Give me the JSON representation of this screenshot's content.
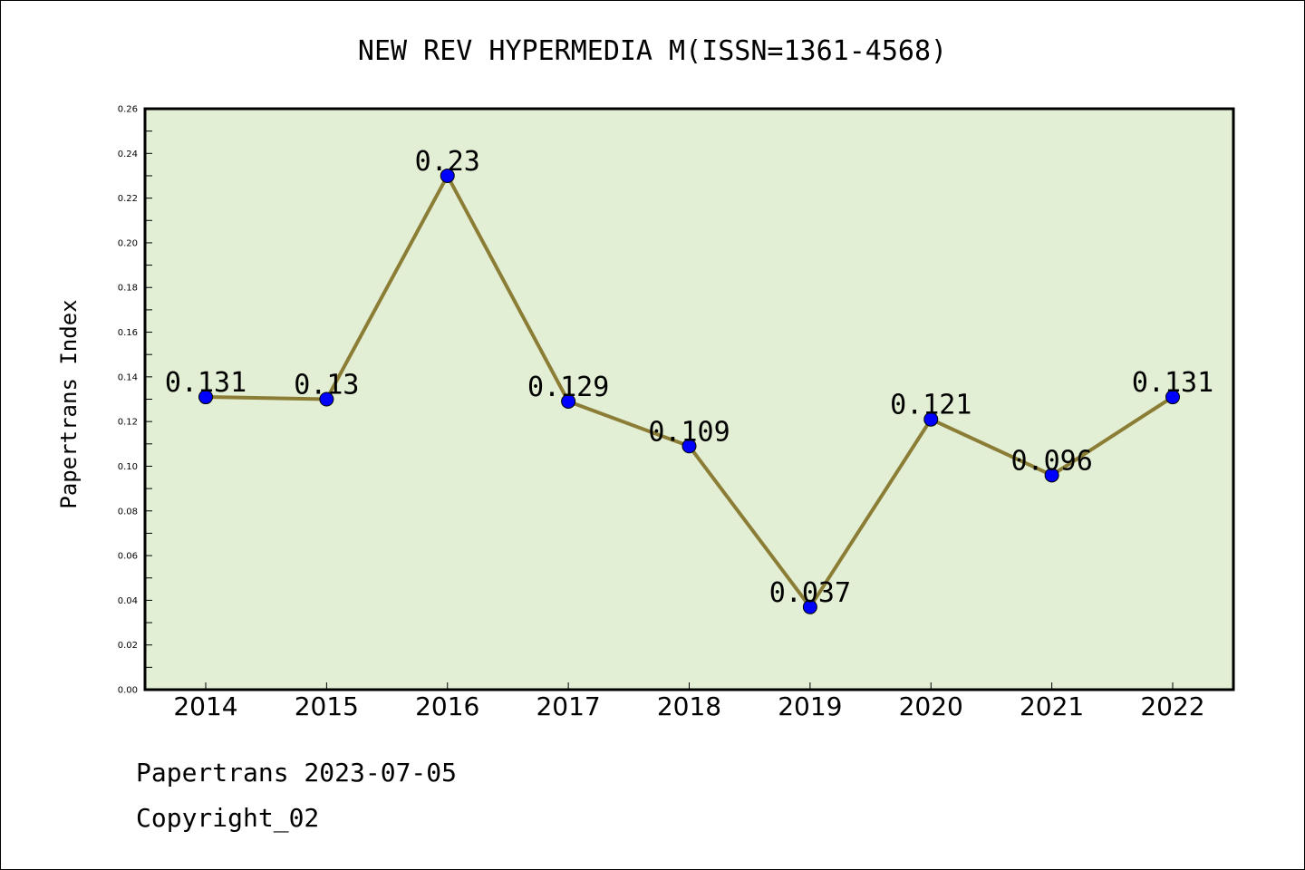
{
  "chart_data": {
    "type": "line",
    "title": "NEW REV HYPERMEDIA M(ISSN=1361-4568)",
    "ylabel": "Papertrans Index",
    "xlabel": "",
    "categories": [
      "2014",
      "2015",
      "2016",
      "2017",
      "2018",
      "2019",
      "2020",
      "2021",
      "2022"
    ],
    "series": [
      {
        "values": [
          0.131,
          0.13,
          0.23,
          0.129,
          0.109,
          0.037,
          0.121,
          0.096,
          0.131
        ],
        "line_color": "#8b7d35",
        "marker_color": "#0000ff"
      }
    ],
    "data_labels": [
      "0.131",
      "0.13",
      "0.23",
      "0.129",
      "0.109",
      "0.037",
      "0.121",
      "0.096",
      "0.131"
    ],
    "ylim": [
      0,
      0.26
    ],
    "yticks": [
      "0.00",
      "0.02",
      "0.04",
      "0.06",
      "0.08",
      "0.10",
      "0.12",
      "0.14",
      "0.16",
      "0.18",
      "0.20",
      "0.22",
      "0.24",
      "0.26"
    ],
    "plot_background": "#e2efd4",
    "grid": false
  },
  "footer": {
    "line1": "Papertrans 2023-07-05",
    "line2": "Copyright_02"
  }
}
